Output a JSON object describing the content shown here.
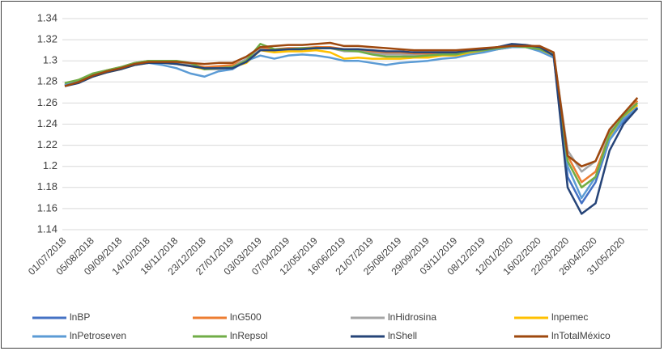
{
  "chart_data": {
    "type": "line",
    "categories": [
      "01/07/2018",
      null,
      "05/08/2018",
      null,
      "09/09/2018",
      null,
      "14/10/2018",
      null,
      "18/11/2018",
      null,
      "23/12/2018",
      null,
      "27/01/2019",
      null,
      "03/03/2019",
      null,
      "07/04/2019",
      null,
      "12/05/2019",
      null,
      "16/06/2019",
      null,
      "21/07/2019",
      null,
      "25/08/2019",
      null,
      "29/09/2019",
      null,
      "03/11/2019",
      null,
      "08/12/2019",
      null,
      "12/01/2020",
      null,
      "16/02/2020",
      null,
      "22/03/2020",
      null,
      "26/04/2020",
      null,
      "31/05/2020",
      null
    ],
    "ylim": [
      1.14,
      1.34
    ],
    "yticks": [
      1.14,
      1.16,
      1.18,
      1.2,
      1.22,
      1.24,
      1.26,
      1.28,
      1.3,
      1.32,
      1.34
    ],
    "grid": true,
    "series": [
      {
        "name": "lnBP",
        "color": "#4472c4",
        "values": [
          1.277,
          1.281,
          1.286,
          1.29,
          1.293,
          1.297,
          1.299,
          1.299,
          1.298,
          1.296,
          1.293,
          1.294,
          1.295,
          1.3,
          1.312,
          1.31,
          1.311,
          1.311,
          1.312,
          1.312,
          1.31,
          1.31,
          1.308,
          1.307,
          1.307,
          1.306,
          1.306,
          1.307,
          1.307,
          1.309,
          1.31,
          1.312,
          1.314,
          1.314,
          1.312,
          1.305,
          1.19,
          1.165,
          1.185,
          1.225,
          1.243,
          1.255
        ]
      },
      {
        "name": "lnG500",
        "color": "#ed7d31",
        "values": [
          1.278,
          1.282,
          1.287,
          1.291,
          1.294,
          1.298,
          1.3,
          1.3,
          1.299,
          1.297,
          1.294,
          1.295,
          1.296,
          1.301,
          1.313,
          1.311,
          1.312,
          1.312,
          1.313,
          1.313,
          1.311,
          1.311,
          1.309,
          1.308,
          1.308,
          1.307,
          1.307,
          1.308,
          1.308,
          1.31,
          1.311,
          1.313,
          1.315,
          1.315,
          1.313,
          1.305,
          1.21,
          1.185,
          1.195,
          1.23,
          1.248,
          1.262
        ]
      },
      {
        "name": "lnHidrosina",
        "color": "#a5a5a5",
        "values": [
          1.278,
          1.281,
          1.286,
          1.29,
          1.294,
          1.298,
          1.3,
          1.3,
          1.299,
          1.297,
          1.292,
          1.292,
          1.294,
          1.302,
          1.311,
          1.309,
          1.31,
          1.311,
          1.312,
          1.312,
          1.309,
          1.309,
          1.307,
          1.306,
          1.306,
          1.305,
          1.305,
          1.306,
          1.306,
          1.308,
          1.309,
          1.311,
          1.313,
          1.313,
          1.311,
          1.306,
          1.215,
          1.195,
          1.205,
          1.232,
          1.25,
          1.26
        ]
      },
      {
        "name": "lnpemec",
        "color": "#ffc000",
        "values": [
          1.277,
          1.28,
          1.285,
          1.289,
          1.292,
          1.296,
          1.298,
          1.298,
          1.297,
          1.295,
          1.292,
          1.293,
          1.294,
          1.298,
          1.31,
          1.308,
          1.309,
          1.309,
          1.31,
          1.308,
          1.302,
          1.303,
          1.302,
          1.302,
          1.302,
          1.303,
          1.303,
          1.305,
          1.305,
          1.307,
          1.309,
          1.311,
          1.313,
          1.313,
          1.311,
          1.305,
          1.205,
          1.18,
          1.19,
          1.228,
          1.247,
          1.258
        ]
      },
      {
        "name": "lnPetroseven",
        "color": "#5b9bd5",
        "values": [
          1.277,
          1.281,
          1.286,
          1.29,
          1.293,
          1.297,
          1.298,
          1.296,
          1.293,
          1.288,
          1.285,
          1.29,
          1.292,
          1.3,
          1.305,
          1.302,
          1.305,
          1.306,
          1.305,
          1.303,
          1.3,
          1.3,
          1.298,
          1.296,
          1.298,
          1.299,
          1.3,
          1.302,
          1.303,
          1.306,
          1.308,
          1.311,
          1.313,
          1.313,
          1.309,
          1.303,
          1.2,
          1.17,
          1.19,
          1.225,
          1.245,
          1.256
        ]
      },
      {
        "name": "lnRepsol",
        "color": "#70ad47",
        "values": [
          1.279,
          1.282,
          1.288,
          1.291,
          1.294,
          1.298,
          1.3,
          1.3,
          1.3,
          1.298,
          1.292,
          1.293,
          1.294,
          1.3,
          1.316,
          1.311,
          1.311,
          1.312,
          1.312,
          1.312,
          1.31,
          1.309,
          1.306,
          1.304,
          1.304,
          1.304,
          1.305,
          1.306,
          1.306,
          1.309,
          1.31,
          1.312,
          1.314,
          1.313,
          1.311,
          1.306,
          1.205,
          1.18,
          1.19,
          1.23,
          1.248,
          1.26
        ]
      },
      {
        "name": "lnShell",
        "color": "#264478",
        "values": [
          1.276,
          1.279,
          1.285,
          1.289,
          1.292,
          1.296,
          1.298,
          1.298,
          1.297,
          1.295,
          1.293,
          1.293,
          1.293,
          1.299,
          1.31,
          1.31,
          1.311,
          1.311,
          1.312,
          1.312,
          1.311,
          1.311,
          1.31,
          1.309,
          1.309,
          1.308,
          1.308,
          1.308,
          1.308,
          1.31,
          1.311,
          1.313,
          1.316,
          1.315,
          1.313,
          1.305,
          1.18,
          1.155,
          1.165,
          1.215,
          1.24,
          1.255
        ]
      },
      {
        "name": "lnTotalMéxico",
        "color": "#9e480e",
        "values": [
          1.276,
          1.28,
          1.286,
          1.29,
          1.293,
          1.297,
          1.299,
          1.299,
          1.299,
          1.298,
          1.297,
          1.298,
          1.298,
          1.304,
          1.313,
          1.314,
          1.315,
          1.315,
          1.316,
          1.317,
          1.314,
          1.314,
          1.313,
          1.312,
          1.311,
          1.31,
          1.31,
          1.31,
          1.31,
          1.311,
          1.312,
          1.313,
          1.314,
          1.314,
          1.314,
          1.308,
          1.21,
          1.2,
          1.205,
          1.235,
          1.25,
          1.265
        ]
      }
    ]
  }
}
